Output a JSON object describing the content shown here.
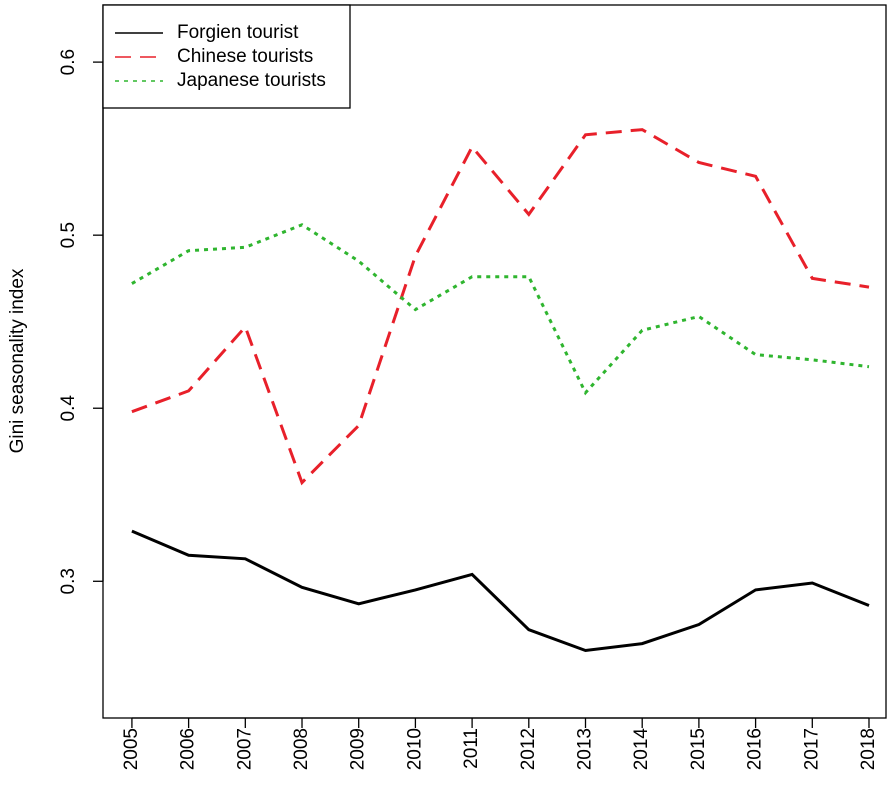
{
  "chart_data": {
    "type": "line",
    "y_label": "Gini seasonality index",
    "x": [
      2005,
      2006,
      2007,
      2008,
      2009,
      2010,
      2011,
      2012,
      2013,
      2014,
      2015,
      2016,
      2017,
      2018
    ],
    "series": [
      {
        "name": "Forgien tourist",
        "color": "#000000",
        "linestyle": "solid",
        "values": [
          0.329,
          0.315,
          0.313,
          0.2965,
          0.287,
          0.295,
          0.304,
          0.272,
          0.26,
          0.264,
          0.275,
          0.295,
          0.299,
          0.286
        ]
      },
      {
        "name": "Chinese tourists",
        "color": "#e8202a",
        "linestyle": "dashed",
        "values": [
          0.398,
          0.41,
          0.447,
          0.357,
          0.39,
          0.488,
          0.551,
          0.512,
          0.558,
          0.561,
          0.542,
          0.534,
          0.475,
          0.47
        ]
      },
      {
        "name": "Japanese tourists",
        "color": "#2fb52f",
        "linestyle": "dotted",
        "values": [
          0.472,
          0.491,
          0.493,
          0.506,
          0.485,
          0.457,
          0.476,
          0.476,
          0.409,
          0.445,
          0.453,
          0.431,
          0.428,
          0.424
        ]
      }
    ],
    "xlim": [
      2004.49,
      2018.3
    ],
    "ylim": [
      0.221,
      0.633
    ],
    "xticks": [
      2005,
      2006,
      2007,
      2008,
      2009,
      2010,
      2011,
      2012,
      2013,
      2014,
      2015,
      2016,
      2017,
      2018
    ],
    "yticks": [
      0.3,
      0.4,
      0.5,
      0.6
    ],
    "legend": "top-left",
    "grid": false
  }
}
